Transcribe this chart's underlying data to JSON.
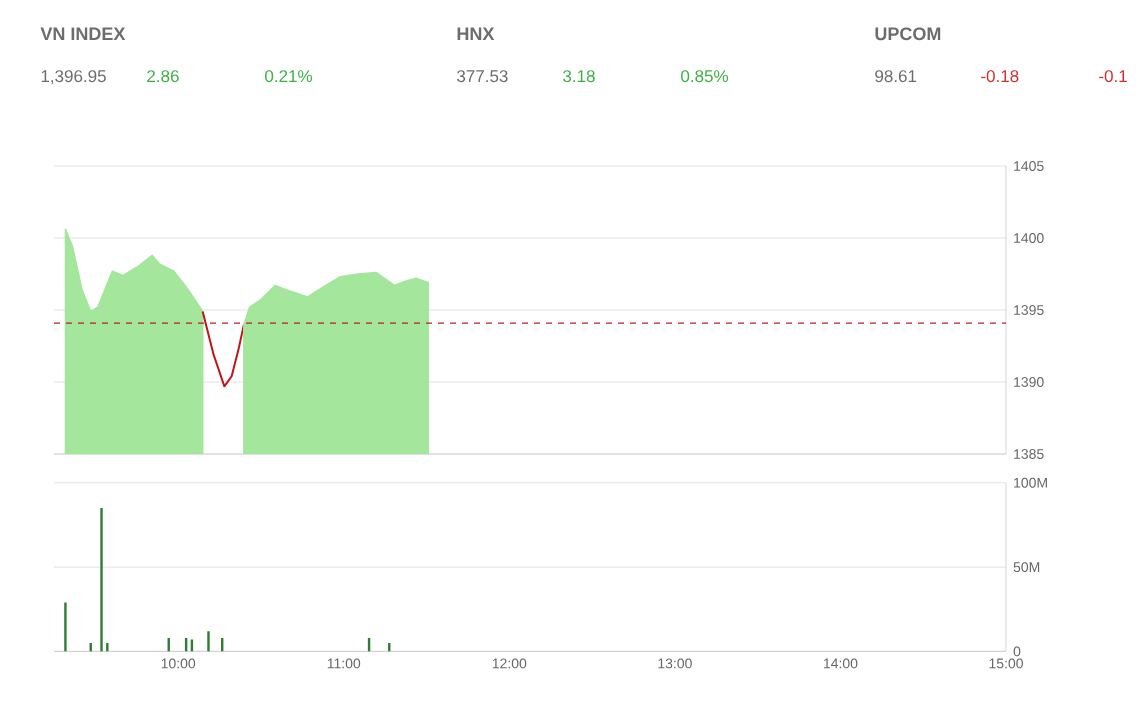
{
  "chart_data": [
    {
      "type": "other",
      "annotations": [
        "VN INDEX",
        "1,396.95",
        "2.86",
        "0.21%",
        "HNX",
        "377.53",
        "3.18",
        "0.85%",
        "UPCOM",
        "98.61",
        "-0.18",
        "-0.1"
      ],
      "colors": [
        "#3cb043",
        "#3cb043",
        "#d0312d"
      ]
    },
    {
      "type": "area",
      "xlim": [
        9.25,
        15
      ],
      "ylim": [
        1385,
        1405
      ],
      "yticks": [
        1385,
        1390,
        1395,
        1400,
        1405
      ],
      "grid": "y",
      "tick_labels": "y",
      "ref_lines": [
        {
          "axis": "y",
          "value": 1394.09,
          "color": "#b22222",
          "line_style": "dashed"
        }
      ],
      "series": [
        {
          "type": "area",
          "color": "#a3e69c",
          "x": [
            9.319,
            9.362,
            9.419,
            9.472,
            9.515,
            9.603,
            9.668,
            9.755,
            9.843,
            9.886,
            9.974,
            10.061,
            10.148
          ],
          "values": [
            1400.6,
            1399.4,
            1396.4,
            1394.9,
            1395.2,
            1397.7,
            1397.4,
            1398.0,
            1398.8,
            1398.2,
            1397.7,
            1396.4,
            1394.9
          ]
        },
        {
          "type": "line",
          "color": "#c0161b",
          "x": [
            10.148,
            10.214,
            10.279,
            10.323,
            10.367,
            10.397
          ],
          "values": [
            1394.9,
            1391.9,
            1389.7,
            1390.4,
            1392.4,
            1394.0
          ]
        },
        {
          "type": "area",
          "color": "#a3e69c",
          "x": [
            10.397,
            10.432,
            10.498,
            10.585,
            10.651,
            10.782,
            10.891,
            10.978,
            11.087,
            11.197,
            11.306,
            11.371,
            11.437,
            11.511
          ],
          "values": [
            1394.0,
            1395.2,
            1395.7,
            1396.7,
            1396.4,
            1395.9,
            1396.7,
            1397.3,
            1397.5,
            1397.6,
            1396.7,
            1397.0,
            1397.2,
            1396.9
          ]
        }
      ]
    },
    {
      "type": "bar",
      "xlim": [
        9.25,
        15
      ],
      "ylim": [
        0,
        100
      ],
      "grid": "y",
      "xticks": [
        {
          "value": 10,
          "label": "10:00"
        },
        {
          "value": 11,
          "label": "11:00"
        },
        {
          "value": 12,
          "label": "12:00"
        },
        {
          "value": 13,
          "label": "13:00"
        },
        {
          "value": 14,
          "label": "14:00"
        },
        {
          "value": 15,
          "label": "15:00"
        }
      ],
      "yticks": [
        0,
        {
          "value": 50,
          "label": "50M"
        },
        {
          "value": 100,
          "label": "100M"
        }
      ],
      "series": [
        {
          "color": "#2e7d32",
          "x": [
            9.319,
            9.472,
            9.537,
            9.572,
            9.943,
            10.048,
            10.083,
            10.183,
            10.266,
            11.153,
            11.275
          ],
          "values": [
            29,
            5,
            85,
            5,
            8,
            8,
            7,
            12,
            8,
            8,
            5
          ]
        }
      ]
    }
  ]
}
